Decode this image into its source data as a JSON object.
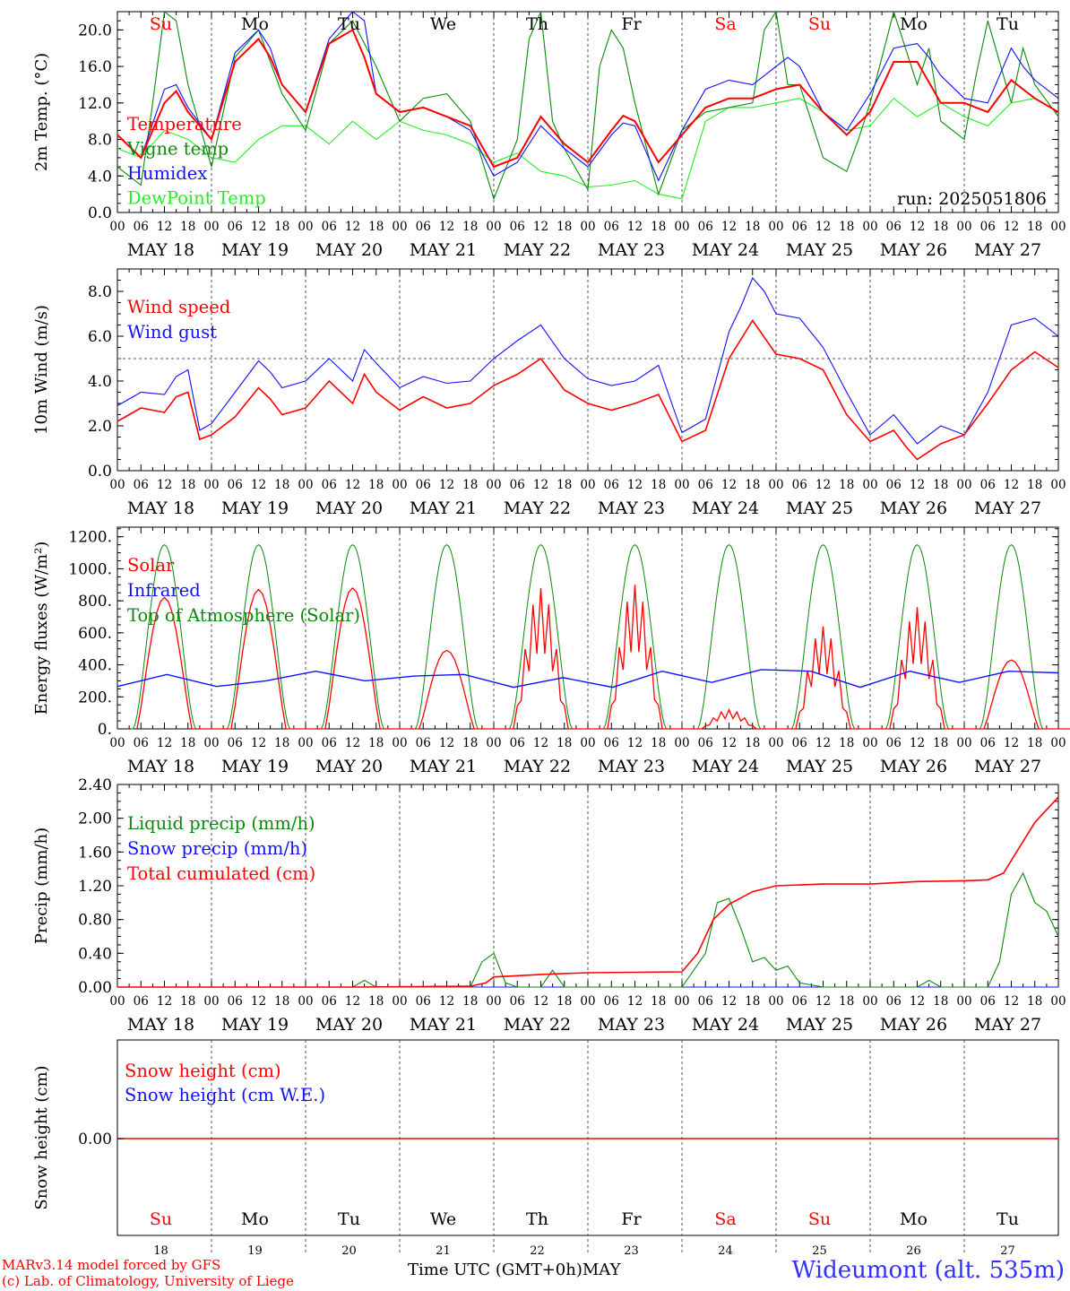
{
  "colors": {
    "red": "#ff0000",
    "darkgreen": "#0a8a0a",
    "blue": "#1010ff",
    "lightgreen": "#22ee22",
    "grid": "#555555",
    "weekend_day": "#ff0000",
    "week_day": "#000000"
  },
  "axis": {
    "hour_ticks": [
      "00",
      "06",
      "12",
      "18"
    ],
    "end_tick": "00",
    "date_labels": [
      "MAY 18",
      "MAY 19",
      "MAY 20",
      "MAY 21",
      "MAY 22",
      "MAY 23",
      "MAY 24",
      "MAY 25",
      "MAY 26",
      "MAY 27"
    ],
    "day_names": [
      "Su",
      "Mo",
      "Tu",
      "We",
      "Th",
      "Fr",
      "Sa",
      "Su",
      "Mo",
      "Tu"
    ],
    "weekend": [
      true,
      false,
      false,
      false,
      false,
      false,
      true,
      true,
      false,
      false
    ],
    "bottom_day_numbers": [
      "18",
      "19",
      "20",
      "21",
      "22",
      "23",
      "24",
      "25",
      "26",
      "27"
    ]
  },
  "footer": {
    "credit_line1": "MARv3.14 model forced by GFS",
    "credit_line2": "(c) Lab. of Climatology, University of Liege",
    "time_label": "Time UTC (GMT+0h)",
    "month_label": "MAY",
    "station": "Wideumont (alt. 535m)"
  },
  "chart_data": [
    {
      "type": "line",
      "ylabel": "2m Temp. (°C)",
      "ylim": [
        0,
        22
      ],
      "yticks": [
        "0.0",
        "4.0",
        "8.0",
        "12.0",
        "16.0",
        "20.0"
      ],
      "ytick_values": [
        0,
        4,
        8,
        12,
        16,
        20
      ],
      "annotation": "run: 2025051806",
      "x_unit": "hours since 2025-05-18 00 UTC",
      "series": [
        {
          "name": "Temperature",
          "color": "red",
          "x": [
            0,
            6,
            12,
            15,
            18,
            24,
            30,
            36,
            39,
            42,
            48,
            54,
            60,
            63,
            66,
            72,
            78,
            84,
            90,
            96,
            102,
            108,
            114,
            120,
            126,
            129,
            132,
            138,
            144,
            150,
            156,
            162,
            168,
            174,
            180,
            186,
            192,
            198,
            204,
            210,
            216,
            222,
            228,
            234,
            240
          ],
          "y": [
            8.5,
            6.0,
            12.0,
            13.3,
            11.0,
            8.0,
            16.5,
            19.0,
            17.0,
            14.0,
            11.0,
            18.5,
            20.0,
            17.0,
            13.0,
            11.0,
            11.5,
            10.5,
            9.5,
            5.0,
            6.0,
            10.5,
            7.5,
            5.5,
            9.0,
            10.6,
            10.0,
            5.5,
            8.5,
            11.5,
            12.5,
            12.5,
            13.5,
            14.0,
            11.0,
            8.5,
            11.0,
            16.5,
            16.5,
            12.0,
            12.0,
            11.0,
            14.5,
            12.5,
            11.0
          ]
        },
        {
          "name": "Vigne temp",
          "color": "darkgreen",
          "x": [
            0,
            6,
            9,
            12,
            15,
            18,
            24,
            30,
            36,
            42,
            48,
            54,
            60,
            66,
            72,
            78,
            84,
            90,
            96,
            102,
            105,
            108,
            111,
            114,
            120,
            123,
            126,
            129,
            132,
            138,
            144,
            150,
            156,
            162,
            165,
            168,
            171,
            174,
            180,
            186,
            189,
            192,
            198,
            204,
            207,
            210,
            216,
            219,
            222,
            228,
            231,
            234,
            240
          ],
          "y": [
            5.0,
            3.0,
            12.0,
            22.0,
            21.0,
            14.0,
            5.0,
            17.0,
            20.0,
            13.0,
            9.0,
            18.5,
            21.0,
            16.0,
            10.0,
            12.5,
            13.0,
            10.0,
            1.5,
            8.0,
            19.0,
            22.0,
            10.0,
            7.0,
            2.5,
            16.0,
            20.0,
            18.0,
            12.0,
            2.0,
            9.0,
            11.0,
            11.5,
            12.0,
            20.0,
            22.0,
            14.0,
            14.0,
            6.0,
            4.5,
            8.0,
            12.0,
            22.0,
            14.0,
            18.0,
            10.0,
            8.0,
            15.0,
            21.0,
            12.0,
            18.0,
            14.0,
            10.5
          ]
        },
        {
          "name": "Humidex",
          "color": "blue",
          "x": [
            0,
            6,
            12,
            15,
            18,
            24,
            30,
            36,
            39,
            42,
            48,
            54,
            60,
            63,
            66,
            72,
            78,
            84,
            90,
            96,
            102,
            108,
            114,
            120,
            126,
            129,
            132,
            138,
            144,
            150,
            156,
            162,
            168,
            171,
            174,
            180,
            186,
            192,
            198,
            204,
            207,
            210,
            216,
            222,
            228,
            231,
            234,
            240
          ],
          "y": [
            8.5,
            6.0,
            13.5,
            14.0,
            11.5,
            8.0,
            17.5,
            20.0,
            18.0,
            14.0,
            11.0,
            19.0,
            22.0,
            21.0,
            13.0,
            11.0,
            11.5,
            10.5,
            9.0,
            4.0,
            5.5,
            9.5,
            7.0,
            5.0,
            8.5,
            9.8,
            9.5,
            3.5,
            9.0,
            13.5,
            14.5,
            14.0,
            16.0,
            17.0,
            16.0,
            11.0,
            9.0,
            13.0,
            18.0,
            18.5,
            17.0,
            15.0,
            12.5,
            12.0,
            18.0,
            16.0,
            14.5,
            12.5
          ]
        },
        {
          "name": "DewPoint Temp",
          "color": "lightgreen",
          "x": [
            0,
            6,
            12,
            18,
            24,
            30,
            36,
            42,
            48,
            54,
            60,
            66,
            72,
            78,
            84,
            90,
            96,
            102,
            108,
            114,
            120,
            126,
            132,
            138,
            144,
            150,
            156,
            162,
            168,
            174,
            180,
            186,
            192,
            198,
            204,
            210,
            216,
            222,
            228,
            234,
            240
          ],
          "y": [
            7.0,
            6.0,
            9.0,
            8.0,
            6.0,
            5.5,
            8.0,
            9.5,
            9.5,
            7.5,
            10.0,
            8.0,
            10.0,
            9.0,
            8.5,
            7.5,
            5.5,
            6.5,
            4.5,
            4.0,
            2.8,
            3.0,
            3.5,
            2.0,
            1.5,
            10.0,
            11.5,
            11.5,
            12.0,
            12.5,
            11.0,
            9.0,
            9.5,
            12.5,
            10.5,
            12.0,
            10.5,
            9.5,
            12.0,
            12.5,
            11.0
          ]
        }
      ]
    },
    {
      "type": "line",
      "ylabel": "10m Wind (m/s)",
      "ylim": [
        0,
        9
      ],
      "yticks": [
        "0.0",
        "2.0",
        "4.0",
        "6.0",
        "8.0"
      ],
      "ytick_values": [
        0,
        2,
        4,
        6,
        8
      ],
      "reference_line": 5.0,
      "x_unit": "hours since 2025-05-18 00 UTC",
      "series": [
        {
          "name": "Wind speed",
          "color": "red",
          "x": [
            0,
            6,
            12,
            15,
            18,
            21,
            24,
            30,
            36,
            39,
            42,
            48,
            54,
            60,
            63,
            66,
            72,
            78,
            84,
            90,
            96,
            102,
            108,
            114,
            120,
            126,
            132,
            138,
            144,
            150,
            156,
            162,
            168,
            174,
            180,
            186,
            192,
            198,
            201,
            204,
            210,
            216,
            222,
            228,
            234,
            240
          ],
          "y": [
            2.2,
            2.8,
            2.6,
            3.3,
            3.5,
            1.4,
            1.6,
            2.4,
            3.7,
            3.2,
            2.5,
            2.8,
            4.0,
            3.0,
            4.3,
            3.5,
            2.7,
            3.3,
            2.8,
            3.0,
            3.8,
            4.3,
            5.0,
            3.6,
            3.0,
            2.7,
            3.0,
            3.4,
            1.3,
            1.8,
            5.0,
            6.7,
            5.2,
            5.0,
            4.5,
            2.5,
            1.3,
            1.8,
            1.1,
            0.5,
            1.2,
            1.6,
            3.0,
            4.5,
            5.3,
            4.6
          ]
        },
        {
          "name": "Wind gust",
          "color": "blue",
          "x": [
            0,
            6,
            12,
            15,
            18,
            21,
            24,
            30,
            36,
            39,
            42,
            48,
            54,
            60,
            63,
            66,
            72,
            78,
            84,
            90,
            96,
            102,
            108,
            114,
            120,
            126,
            132,
            138,
            144,
            150,
            156,
            159,
            162,
            165,
            168,
            174,
            180,
            186,
            192,
            198,
            204,
            210,
            216,
            222,
            228,
            234,
            240
          ],
          "y": [
            2.9,
            3.5,
            3.4,
            4.2,
            4.5,
            1.8,
            2.1,
            3.5,
            4.9,
            4.4,
            3.7,
            4.0,
            5.0,
            4.0,
            5.4,
            4.8,
            3.7,
            4.2,
            3.9,
            4.0,
            5.0,
            5.8,
            6.5,
            5.0,
            4.1,
            3.8,
            4.0,
            4.7,
            1.7,
            2.3,
            6.2,
            7.3,
            8.6,
            8.0,
            7.0,
            6.8,
            5.5,
            3.5,
            1.6,
            2.5,
            1.2,
            2.0,
            1.6,
            3.5,
            6.5,
            6.8,
            6.0
          ]
        }
      ]
    },
    {
      "type": "line",
      "ylabel": "Energy fluxes (W/m²)",
      "ylim": [
        0,
        1260
      ],
      "yticks": [
        "0.",
        "200.",
        "400.",
        "600.",
        "800.",
        "1000.",
        "1200."
      ],
      "ytick_values": [
        0,
        200,
        400,
        600,
        800,
        1000,
        1200
      ],
      "x_unit": "hours since 2025-05-18 00 UTC",
      "toa_peak": 1150,
      "solar_peaks": [
        820,
        870,
        880,
        490,
        880,
        900,
        120,
        640,
        760,
        430
      ],
      "infrared_values": [
        265,
        340,
        265,
        300,
        360,
        300,
        330,
        340,
        260,
        320,
        260,
        360,
        290,
        370,
        360,
        260,
        360,
        290,
        360,
        350
      ],
      "series_names": [
        "Solar",
        "Infrared",
        "Top of Atmosphere (Solar)"
      ],
      "series_colors": [
        "red",
        "blue",
        "darkgreen"
      ]
    },
    {
      "type": "line",
      "ylabel": "Precip (mm/h)",
      "ylim": [
        0,
        2.4
      ],
      "yticks": [
        "0.00",
        "0.40",
        "0.80",
        "1.20",
        "1.60",
        "2.00",
        "2.40"
      ],
      "ytick_values": [
        0,
        0.4,
        0.8,
        1.2,
        1.6,
        2.0,
        2.4
      ],
      "x_unit": "hours since 2025-05-18 00 UTC",
      "series": [
        {
          "name": "Liquid precip (mm/h)",
          "color": "darkgreen",
          "x": [
            0,
            60,
            63,
            66,
            90,
            93,
            96,
            99,
            102,
            108,
            111,
            114,
            126,
            144,
            150,
            153,
            156,
            159,
            162,
            165,
            168,
            171,
            174,
            180,
            204,
            207,
            210,
            216,
            222,
            225,
            228,
            231,
            234,
            237,
            240
          ],
          "y": [
            0,
            0,
            0.08,
            0,
            0,
            0.3,
            0.4,
            0.05,
            0,
            0,
            0.2,
            0,
            0,
            0,
            0.4,
            1.0,
            1.05,
            0.7,
            0.3,
            0.35,
            0.2,
            0.25,
            0.05,
            0,
            0,
            0.08,
            0,
            0,
            0,
            0.3,
            1.1,
            1.35,
            1.0,
            0.9,
            0.6
          ]
        },
        {
          "name": "Snow precip (mm/h)",
          "color": "blue",
          "x": [
            0,
            240
          ],
          "y": [
            0,
            0
          ]
        },
        {
          "name": "Total cumulated (cm)",
          "color": "red",
          "x": [
            0,
            60,
            90,
            94,
            96,
            100,
            108,
            120,
            144,
            148,
            152,
            156,
            162,
            168,
            180,
            192,
            204,
            216,
            222,
            226,
            230,
            234,
            240
          ],
          "y": [
            0,
            0,
            0.01,
            0.05,
            0.12,
            0.13,
            0.15,
            0.17,
            0.18,
            0.4,
            0.8,
            0.98,
            1.13,
            1.2,
            1.22,
            1.22,
            1.25,
            1.26,
            1.27,
            1.35,
            1.65,
            1.95,
            2.25
          ]
        }
      ]
    },
    {
      "type": "line",
      "ylabel": "Snow height (cm)",
      "yticks": [
        "0.00"
      ],
      "ytick_values": [
        0
      ],
      "x_unit": "hours since 2025-05-18 00 UTC",
      "series": [
        {
          "name": "Snow height (cm)",
          "color": "red",
          "x": [
            0,
            240
          ],
          "y": [
            0,
            0
          ]
        },
        {
          "name": "Snow height (cm W.E.)",
          "color": "blue",
          "x": [
            0,
            240
          ],
          "y": [
            0,
            0
          ]
        }
      ]
    }
  ]
}
